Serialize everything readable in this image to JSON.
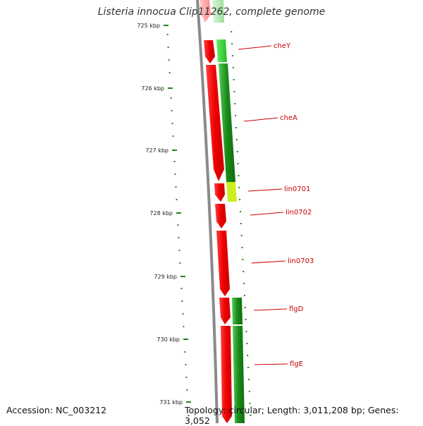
{
  "title": "Listeria innocua Clip11262, complete genome",
  "footer": {
    "accession": "Accession: NC_003212",
    "topology": "Topology: circular; Length: 3,011,208 bp; Genes: 3,052"
  },
  "ruler": {
    "ticks": [
      "725 kbp",
      "726 kbp",
      "727 kbp",
      "728 kbp",
      "729 kbp",
      "730 kbp",
      "731 kbp"
    ]
  },
  "genes": [
    {
      "label": "cheY"
    },
    {
      "label": "cheA"
    },
    {
      "label": "lin0701"
    },
    {
      "label": "lin0702"
    },
    {
      "label": "lin0703"
    },
    {
      "label": "flgD"
    },
    {
      "label": "flgE"
    }
  ],
  "colors": {
    "backbone": "#8a8a8a",
    "cds": "#ee0000",
    "cds_light": "#ff9a9a",
    "similarity_dark": "#1a8a1a",
    "similarity_bright": "#33cc33",
    "similarity_yellow": "#ccee22",
    "tick": "#1a8a1a",
    "label_line": "#cc0000"
  }
}
